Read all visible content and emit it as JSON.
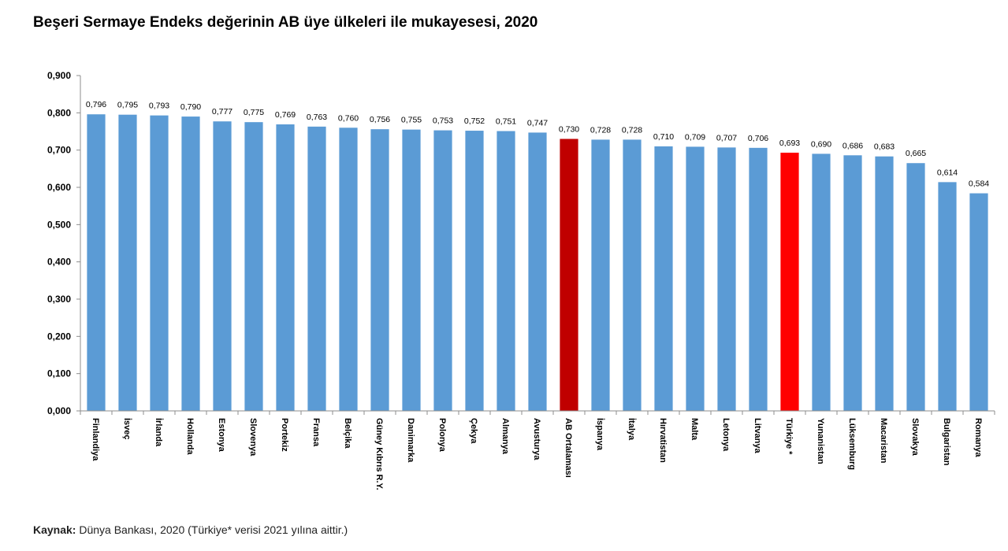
{
  "title": "Beşeri Sermaye Endeks değerinin AB üye ülkeleri ile mukayesesi, 2020",
  "source": {
    "label": "Kaynak:",
    "text": "Dünya Bankası, 2020 (Türkiye* verisi 2021 yılına aittir.)"
  },
  "chart_data": {
    "type": "bar",
    "title": "Beşeri Sermaye Endeks değerinin AB üye ülkeleri ile mukayesesi, 2020",
    "xlabel": "",
    "ylabel": "",
    "ylim": [
      0,
      0.9
    ],
    "y_ticks": [
      "0,000",
      "0,100",
      "0,200",
      "0,300",
      "0,400",
      "0,500",
      "0,600",
      "0,700",
      "0,800",
      "0,900"
    ],
    "grid": false,
    "legend": "none",
    "colors": {
      "default": "#5b9bd5",
      "ab_average": "#c00000",
      "turkiye": "#ff0000"
    },
    "categories": [
      "Finlandiya",
      "İsveç",
      "İrlanda",
      "Hollanda",
      "Estonya",
      "Slovenya",
      "Portekiz",
      "Fransa",
      "Belçika",
      "Güney Kıbrıs R.Y.",
      "Danimarka",
      "Polonya",
      "Çekya",
      "Almanya",
      "Avusturya",
      "AB Ortalaması",
      "İspanya",
      "İtalya",
      "Hırvatistan",
      "Malta",
      "Letonya",
      "Litvanya",
      "Türkiye *",
      "Yunanistan",
      "Lüksemburg",
      "Macaristan",
      "Slovakya",
      "Bulgaristan",
      "Romanya"
    ],
    "values": [
      0.796,
      0.795,
      0.793,
      0.79,
      0.777,
      0.775,
      0.769,
      0.763,
      0.76,
      0.756,
      0.755,
      0.753,
      0.752,
      0.751,
      0.747,
      0.73,
      0.728,
      0.728,
      0.71,
      0.709,
      0.707,
      0.706,
      0.693,
      0.69,
      0.686,
      0.683,
      0.665,
      0.614,
      0.584
    ],
    "value_labels": [
      "0,796",
      "0,795",
      "0,793",
      "0,790",
      "0,777",
      "0,775",
      "0,769",
      "0,763",
      "0,760",
      "0,756",
      "0,755",
      "0,753",
      "0,752",
      "0,751",
      "0,747",
      "0,730",
      "0,728",
      "0,728",
      "0,710",
      "0,709",
      "0,707",
      "0,706",
      "0,693",
      "0,690",
      "0,686",
      "0,683",
      "0,665",
      "0,614",
      "0,584"
    ],
    "highlight": {
      "AB Ortalaması": "ab_average",
      "Türkiye *": "turkiye"
    }
  }
}
